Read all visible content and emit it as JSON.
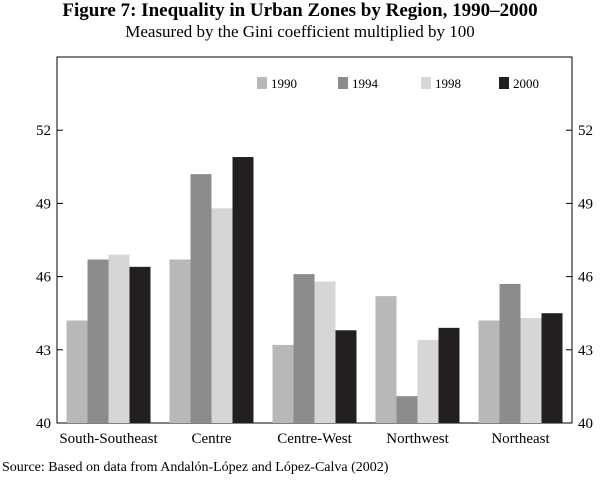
{
  "chart_data": {
    "type": "bar",
    "title": "Figure 7: Inequality in Urban Zones by Region, 1990–2000",
    "subtitle": "Measured by the Gini coefficient multiplied by 100",
    "source": "Source: Based on data from Andalón-López and López-Calva (2002)",
    "categories": [
      "South-Southeast",
      "Centre",
      "Centre-West",
      "Northwest",
      "Northeast"
    ],
    "series": [
      {
        "name": "1990",
        "values": [
          44.2,
          46.7,
          43.2,
          45.2,
          44.2
        ],
        "color": "#b8b8b8"
      },
      {
        "name": "1994",
        "values": [
          46.7,
          50.2,
          46.1,
          41.1,
          45.7
        ],
        "color": "#8c8c8c"
      },
      {
        "name": "1998",
        "values": [
          46.9,
          48.8,
          45.8,
          43.4,
          44.3
        ],
        "color": "#d6d6d6"
      },
      {
        "name": "2000",
        "values": [
          46.4,
          50.9,
          43.8,
          43.9,
          44.5
        ],
        "color": "#231f20"
      }
    ],
    "yticks": [
      "40",
      "43",
      "46",
      "49",
      "52"
    ],
    "ylim": [
      40,
      55
    ],
    "xlabel": "",
    "ylabel": "",
    "legend": "top-right"
  }
}
